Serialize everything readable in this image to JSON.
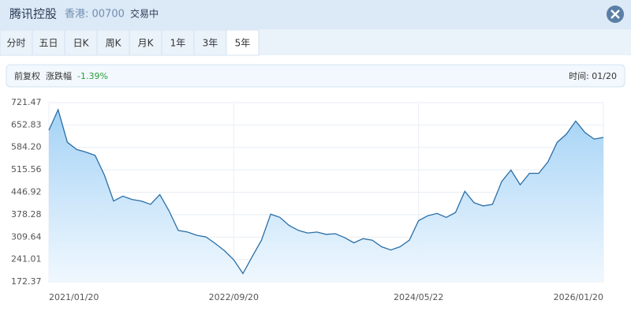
{
  "header": {
    "name": "腾讯控股",
    "market": "香港: 00700",
    "status": "交易中"
  },
  "tabs": [
    "分时",
    "五日",
    "日K",
    "周K",
    "月K",
    "1年",
    "3年",
    "5年"
  ],
  "active_tab": 7,
  "info": {
    "adjust": "前复权",
    "change_label": "涨跌幅",
    "change": "-1.39%",
    "time": "时间: 01/20"
  },
  "chart_data": {
    "type": "line",
    "color": "#2a6ea6",
    "grid": true,
    "x": [
      0,
      1,
      2,
      3,
      4,
      5,
      6,
      7,
      8,
      9,
      10,
      11,
      12,
      13,
      14,
      15,
      16,
      17,
      18,
      19,
      20,
      21,
      22,
      23,
      24,
      25,
      26,
      27,
      28,
      29,
      30,
      31,
      32,
      33,
      34,
      35,
      36,
      37,
      38,
      39,
      40,
      41,
      42,
      43,
      44,
      45,
      46,
      47,
      48,
      49,
      50,
      51,
      52,
      53,
      54,
      55,
      56,
      57,
      58,
      59,
      60
    ],
    "values": [
      637,
      700,
      600,
      578,
      570,
      560,
      500,
      420,
      435,
      425,
      420,
      410,
      440,
      390,
      330,
      325,
      315,
      310,
      290,
      268,
      240,
      198,
      250,
      300,
      380,
      370,
      345,
      330,
      322,
      325,
      318,
      320,
      308,
      292,
      305,
      300,
      280,
      270,
      280,
      300,
      360,
      375,
      382,
      370,
      385,
      450,
      415,
      405,
      410,
      480,
      515,
      470,
      505,
      505,
      540,
      600,
      625,
      665,
      630,
      610,
      615
    ],
    "xlim": [
      0,
      60
    ],
    "xticks": [
      {
        "value": 0,
        "label": "2021/01/20"
      },
      {
        "value": 20,
        "label": "2022/09/20"
      },
      {
        "value": 40,
        "label": "2024/05/22"
      },
      {
        "value": 60,
        "label": "2026/01/20"
      }
    ],
    "ylim": [
      172.37,
      721.47
    ],
    "yticks": [
      172.37,
      241.01,
      309.64,
      378.28,
      446.92,
      515.56,
      {
        "value": 584.2,
        "label": "584.20"
      },
      652.83,
      721.47
    ]
  }
}
